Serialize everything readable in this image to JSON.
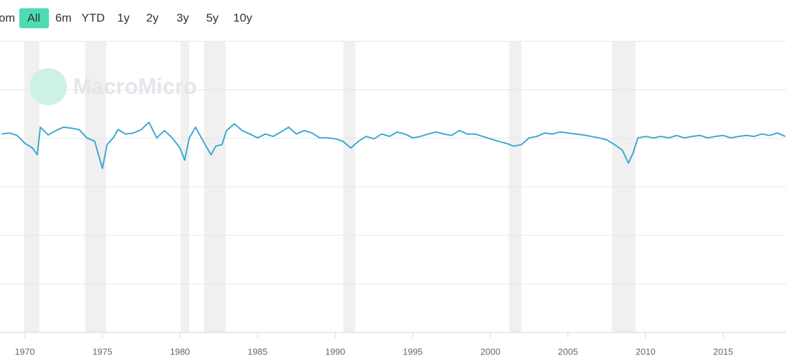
{
  "range_selector": {
    "buttons": [
      "om",
      "All",
      "6m",
      "YTD",
      "1y",
      "2y",
      "3y",
      "5y",
      "10y"
    ],
    "active": 1
  },
  "watermark": "MacroMicro",
  "chart_data": {
    "type": "line",
    "x": [
      1968.5,
      1969,
      1969.5,
      1970,
      1970.5,
      1970.8,
      1971,
      1971.5,
      1972,
      1972.5,
      1973,
      1973.5,
      1974,
      1974.5,
      1975,
      1975.3,
      1975.7,
      1976,
      1976.5,
      1977,
      1977.5,
      1978,
      1978.5,
      1979,
      1979.5,
      1980,
      1980.3,
      1980.6,
      1981,
      1981.5,
      1982,
      1982.3,
      1982.7,
      1983,
      1983.5,
      1984,
      1984.5,
      1985,
      1985.5,
      1986,
      1986.5,
      1987,
      1987.5,
      1988,
      1988.5,
      1989,
      1989.5,
      1990,
      1990.5,
      1991,
      1991.5,
      1992,
      1992.5,
      1993,
      1993.5,
      1994,
      1994.5,
      1995,
      1995.5,
      1996,
      1996.5,
      1997,
      1997.5,
      1998,
      1998.5,
      1999,
      1999.5,
      2000,
      2000.5,
      2001,
      2001.5,
      2002,
      2002.5,
      2003,
      2003.5,
      2004,
      2004.5,
      2005,
      2005.5,
      2006,
      2006.5,
      2007,
      2007.5,
      2008,
      2008.5,
      2008.9,
      2009.2,
      2009.5,
      2010,
      2010.5,
      2011,
      2011.5,
      2012,
      2012.5,
      2013,
      2013.5,
      2014,
      2014.5,
      2015,
      2015.5,
      2016,
      2016.5,
      2017,
      2017.5,
      2018,
      2018.5,
      2019
    ],
    "series": [
      {
        "color": "#3aa8d0",
        "values": [
          4.09,
          4.11,
          4.06,
          3.9,
          3.8,
          3.66,
          4.23,
          4.07,
          4.16,
          4.23,
          4.21,
          4.18,
          4.01,
          3.94,
          3.38,
          3.87,
          4.01,
          4.18,
          4.09,
          4.11,
          4.18,
          4.33,
          4.01,
          4.16,
          4.01,
          3.8,
          3.55,
          4.01,
          4.23,
          3.94,
          3.66,
          3.84,
          3.87,
          4.16,
          4.3,
          4.16,
          4.09,
          4.01,
          4.09,
          4.04,
          4.13,
          4.23,
          4.09,
          4.16,
          4.11,
          4.01,
          4.01,
          3.99,
          3.94,
          3.8,
          3.94,
          4.04,
          3.99,
          4.09,
          4.04,
          4.13,
          4.09,
          4.01,
          4.04,
          4.09,
          4.13,
          4.09,
          4.06,
          4.16,
          4.09,
          4.09,
          4.04,
          3.99,
          3.94,
          3.9,
          3.84,
          3.87,
          4.01,
          4.04,
          4.11,
          4.09,
          4.13,
          4.11,
          4.09,
          4.07,
          4.04,
          4.01,
          3.97,
          3.87,
          3.76,
          3.49,
          3.7,
          4.01,
          4.04,
          4.01,
          4.04,
          4.01,
          4.06,
          4.01,
          4.04,
          4.06,
          4.01,
          4.04,
          4.06,
          4.01,
          4.04,
          4.06,
          4.04,
          4.09,
          4.06,
          4.11,
          4.04
        ]
      }
    ],
    "recessions": [
      [
        1969.96,
        1970.93
      ],
      [
        1973.87,
        1975.24
      ],
      [
        1980.04,
        1980.58
      ],
      [
        1981.55,
        1982.93
      ],
      [
        1990.53,
        1991.29
      ],
      [
        2001.2,
        2002.0
      ],
      [
        2007.84,
        2009.35
      ]
    ],
    "recession_color": "#f0f0f0",
    "xlim": [
      1968.4,
      2019.05
    ],
    "xticks": [
      1970,
      1975,
      1980,
      1985,
      1990,
      1995,
      2000,
      2005,
      2010,
      2015
    ],
    "ylim": [
      0,
      6
    ],
    "grid_lines": [
      1,
      2,
      3,
      4,
      5,
      6
    ]
  }
}
